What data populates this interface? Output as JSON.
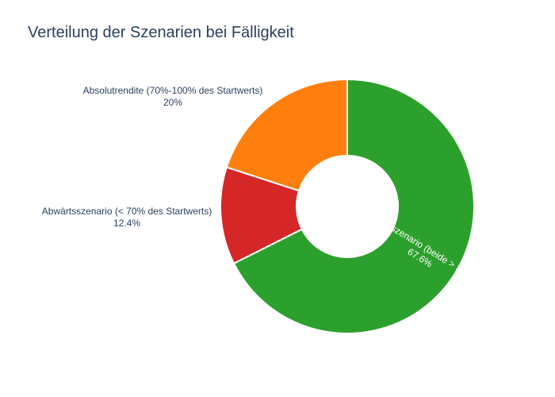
{
  "chart_data": {
    "type": "pie",
    "title": "Verteilung der Szenarien bei Fälligkeit",
    "hole": true,
    "slices": [
      {
        "label": "Aufwärtsszenario (beide > Startwert)",
        "value": 67.6,
        "display": "67.6%",
        "color": "#2ca02c",
        "text_position": "inside"
      },
      {
        "label": "Abwärtsszenario (< 70% des Startwerts)",
        "value": 12.4,
        "display": "12.4%",
        "color": "#d62728",
        "text_position": "outside"
      },
      {
        "label": "Absolutrendite (70%-100% des Startwerts)",
        "value": 20,
        "display": "20%",
        "color": "#ff7f0e",
        "text_position": "outside"
      }
    ]
  }
}
